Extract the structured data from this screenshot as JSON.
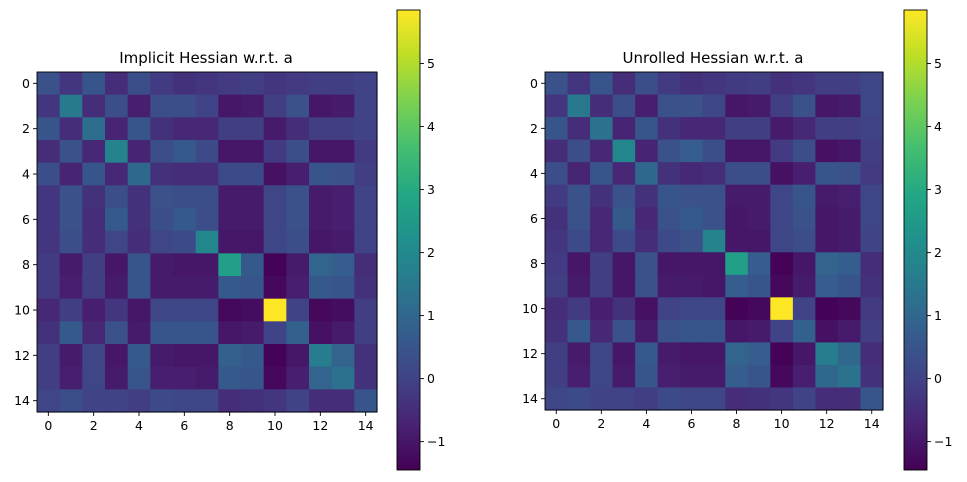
{
  "chart_data": [
    {
      "type": "heatmap",
      "title": "Implicit Hessian w.r.t. a",
      "xlabel": "",
      "ylabel": "",
      "xticks": [
        0,
        2,
        4,
        6,
        8,
        10,
        12,
        14
      ],
      "yticks": [
        0,
        2,
        4,
        6,
        8,
        10,
        12,
        14
      ],
      "colormap": "viridis",
      "colorbar": {
        "vmin": -1.45,
        "vmax": 5.85,
        "ticks": [
          -1,
          0,
          1,
          2,
          3,
          4,
          5
        ],
        "tick_labels": [
          "−1",
          "0",
          "1",
          "2",
          "3",
          "4",
          "5"
        ]
      },
      "matrix": [
        [
          0.4,
          -0.3,
          0.5,
          -0.5,
          0.3,
          -0.2,
          -0.4,
          -0.3,
          -0.2,
          -0.1,
          -0.3,
          -0.2,
          -0.1,
          -0.1,
          0.0
        ],
        [
          -0.3,
          1.5,
          -0.5,
          0.3,
          -0.8,
          0.3,
          0.3,
          0.0,
          -1.0,
          -0.9,
          -0.1,
          0.4,
          -1.0,
          -0.9,
          0.0
        ],
        [
          0.5,
          -0.5,
          1.2,
          -0.7,
          0.5,
          -0.4,
          -0.6,
          -0.6,
          -0.1,
          -0.1,
          -0.9,
          -0.5,
          -0.1,
          -0.1,
          0.0
        ],
        [
          -0.5,
          0.4,
          -0.6,
          1.8,
          -0.7,
          0.3,
          0.6,
          0.2,
          -1.0,
          -1.0,
          -0.2,
          0.3,
          -1.0,
          -1.0,
          -0.2
        ],
        [
          0.3,
          -0.7,
          0.5,
          -0.6,
          1.0,
          -0.4,
          -0.5,
          -0.5,
          0.2,
          0.2,
          -1.1,
          -0.8,
          0.5,
          0.4,
          -0.1
        ],
        [
          -0.3,
          0.4,
          -0.4,
          0.3,
          -0.4,
          0.4,
          0.3,
          0.3,
          -0.9,
          -0.9,
          0.1,
          0.4,
          -0.9,
          -0.8,
          0.0
        ],
        [
          -0.3,
          0.4,
          -0.5,
          0.6,
          -0.4,
          0.3,
          0.6,
          0.3,
          -0.9,
          -0.9,
          0.1,
          0.4,
          -0.9,
          -0.8,
          0.0
        ],
        [
          -0.3,
          0.3,
          -0.5,
          0.1,
          -0.5,
          0.1,
          0.2,
          1.9,
          -1.0,
          -1.0,
          0.1,
          0.3,
          -1.0,
          -0.9,
          0.0
        ],
        [
          -0.2,
          -0.9,
          -0.1,
          -1.0,
          0.5,
          -0.9,
          -1.0,
          -1.0,
          2.7,
          0.6,
          -1.4,
          -0.9,
          0.9,
          0.7,
          -0.5
        ],
        [
          -0.2,
          -0.8,
          -0.1,
          -0.9,
          0.5,
          -0.9,
          -0.9,
          -0.9,
          0.6,
          0.5,
          -1.3,
          -0.8,
          0.6,
          0.5,
          -0.4
        ],
        [
          -0.6,
          -0.1,
          -0.8,
          -0.3,
          -1.0,
          0.1,
          0.1,
          0.1,
          -1.3,
          -1.2,
          5.85,
          0.0,
          -1.3,
          -1.2,
          -0.1
        ],
        [
          -0.4,
          0.6,
          -0.6,
          0.4,
          -0.9,
          0.5,
          0.5,
          0.5,
          -1.0,
          -0.9,
          0.0,
          0.8,
          -1.1,
          -0.9,
          -0.1
        ],
        [
          -0.1,
          -0.9,
          0.1,
          -1.0,
          0.6,
          -0.9,
          -1.0,
          -1.0,
          0.8,
          0.6,
          -1.4,
          -1.0,
          1.6,
          0.9,
          -0.4
        ],
        [
          -0.1,
          -0.8,
          0.1,
          -0.9,
          0.5,
          -0.8,
          -0.8,
          -0.9,
          0.6,
          0.5,
          -1.3,
          -0.8,
          0.9,
          1.3,
          -0.4
        ],
        [
          0.1,
          0.3,
          0.0,
          0.0,
          -0.1,
          0.2,
          0.1,
          0.1,
          -0.5,
          -0.4,
          -0.3,
          0.0,
          -0.5,
          -0.5,
          0.5
        ]
      ]
    },
    {
      "type": "heatmap",
      "title": "Unrolled Hessian w.r.t. a",
      "xlabel": "",
      "ylabel": "",
      "xticks": [
        0,
        2,
        4,
        6,
        8,
        10,
        12,
        14
      ],
      "yticks": [
        0,
        2,
        4,
        6,
        8,
        10,
        12,
        14
      ],
      "colormap": "viridis",
      "colorbar": {
        "vmin": -1.45,
        "vmax": 5.85,
        "ticks": [
          -1,
          0,
          1,
          2,
          3,
          4,
          5
        ],
        "tick_labels": [
          "−1",
          "0",
          "1",
          "2",
          "3",
          "4",
          "5"
        ]
      },
      "matrix": [
        [
          0.4,
          -0.3,
          0.5,
          -0.5,
          0.3,
          -0.2,
          -0.4,
          -0.3,
          -0.2,
          -0.1,
          -0.4,
          -0.3,
          -0.1,
          -0.1,
          0.1
        ],
        [
          -0.3,
          1.5,
          -0.5,
          0.3,
          -0.8,
          0.4,
          0.4,
          0.1,
          -1.0,
          -0.9,
          -0.1,
          0.4,
          -1.0,
          -0.9,
          0.1
        ],
        [
          0.5,
          -0.5,
          1.3,
          -0.7,
          0.5,
          -0.4,
          -0.6,
          -0.6,
          -0.1,
          -0.1,
          -0.9,
          -0.6,
          -0.1,
          -0.1,
          0.0
        ],
        [
          -0.5,
          0.3,
          -0.6,
          1.9,
          -0.7,
          0.4,
          0.7,
          0.3,
          -1.0,
          -1.0,
          -0.2,
          0.3,
          -1.1,
          -1.0,
          -0.1
        ],
        [
          0.3,
          -0.7,
          0.5,
          -0.6,
          1.0,
          -0.4,
          -0.6,
          -0.5,
          0.3,
          0.3,
          -1.1,
          -0.8,
          0.5,
          0.4,
          -0.2
        ],
        [
          -0.2,
          0.4,
          -0.4,
          0.4,
          -0.4,
          0.5,
          0.4,
          0.4,
          -0.9,
          -0.9,
          0.1,
          0.5,
          -0.9,
          -0.8,
          0.1
        ],
        [
          -0.4,
          0.4,
          -0.6,
          0.6,
          -0.6,
          0.4,
          0.6,
          0.4,
          -1.0,
          -0.9,
          0.1,
          0.4,
          -1.0,
          -0.9,
          0.1
        ],
        [
          -0.3,
          0.2,
          -0.6,
          0.2,
          -0.5,
          0.2,
          0.4,
          1.8,
          -1.0,
          -1.0,
          0.1,
          0.3,
          -1.0,
          -0.9,
          0.0
        ],
        [
          -0.2,
          -1.0,
          -0.1,
          -1.0,
          0.4,
          -1.0,
          -1.0,
          -1.0,
          2.7,
          0.7,
          -1.4,
          -1.0,
          0.9,
          0.7,
          -0.5
        ],
        [
          -0.1,
          -0.9,
          -0.1,
          -1.0,
          0.4,
          -0.9,
          -0.9,
          -1.0,
          0.7,
          0.5,
          -1.3,
          -0.9,
          0.7,
          0.5,
          -0.4
        ],
        [
          -0.5,
          -0.2,
          -0.8,
          -0.4,
          -1.1,
          0.0,
          0.1,
          0.1,
          -1.4,
          -1.3,
          5.85,
          0.0,
          -1.4,
          -1.3,
          -0.2
        ],
        [
          -0.4,
          0.6,
          -0.6,
          0.4,
          -0.9,
          0.4,
          0.5,
          0.5,
          -1.0,
          -0.9,
          0.0,
          0.8,
          -1.1,
          -0.9,
          -0.1
        ],
        [
          -0.1,
          -0.9,
          0.1,
          -1.0,
          0.6,
          -0.9,
          -1.0,
          -1.0,
          0.9,
          0.7,
          -1.4,
          -1.0,
          1.6,
          1.0,
          -0.5
        ],
        [
          -0.1,
          -0.8,
          0.1,
          -0.9,
          0.5,
          -0.8,
          -0.9,
          -0.9,
          0.7,
          0.5,
          -1.3,
          -0.8,
          1.0,
          1.3,
          -0.4
        ],
        [
          0.1,
          0.2,
          0.0,
          0.0,
          -0.1,
          0.2,
          0.1,
          0.1,
          -0.5,
          -0.4,
          -0.3,
          0.0,
          -0.5,
          -0.5,
          0.5
        ]
      ]
    }
  ]
}
